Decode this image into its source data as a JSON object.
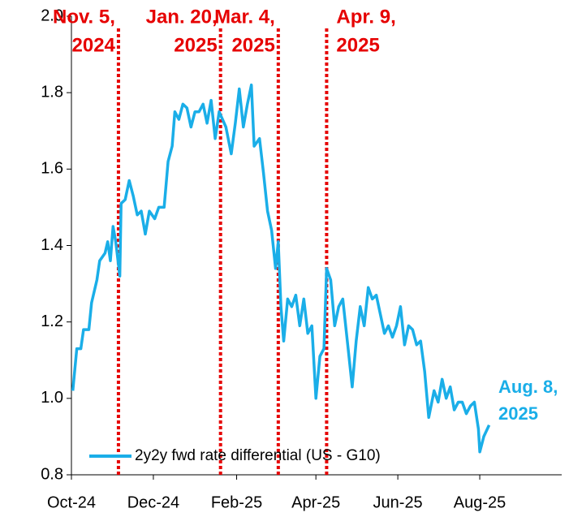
{
  "chart_data": {
    "type": "line",
    "x": [
      "2024-10-02",
      "2024-10-05",
      "2024-10-08",
      "2024-10-10",
      "2024-10-14",
      "2024-10-16",
      "2024-10-20",
      "2024-10-22",
      "2024-10-26",
      "2024-10-28",
      "2024-10-30",
      "2024-11-01",
      "2024-11-03",
      "2024-11-06",
      "2024-11-07",
      "2024-11-10",
      "2024-11-13",
      "2024-11-16",
      "2024-11-19",
      "2024-11-22",
      "2024-11-25",
      "2024-11-28",
      "2024-12-02",
      "2024-12-05",
      "2024-12-09",
      "2024-12-12",
      "2024-12-15",
      "2024-12-17",
      "2024-12-20",
      "2024-12-23",
      "2024-12-26",
      "2024-12-29",
      "2025-01-01",
      "2025-01-04",
      "2025-01-07",
      "2025-01-10",
      "2025-01-13",
      "2025-01-16",
      "2025-01-19",
      "2025-01-24",
      "2025-01-28",
      "2025-01-31",
      "2025-02-03",
      "2025-02-06",
      "2025-02-09",
      "2025-02-12",
      "2025-02-14",
      "2025-02-18",
      "2025-02-21",
      "2025-02-24",
      "2025-02-27",
      "2025-03-02",
      "2025-03-04",
      "2025-03-06",
      "2025-03-08",
      "2025-03-11",
      "2025-03-14",
      "2025-03-17",
      "2025-03-20",
      "2025-03-23",
      "2025-03-26",
      "2025-03-29",
      "2025-04-01",
      "2025-04-04",
      "2025-04-07",
      "2025-04-09",
      "2025-04-12",
      "2025-04-15",
      "2025-04-18",
      "2025-04-21",
      "2025-04-25",
      "2025-04-28",
      "2025-05-01",
      "2025-05-04",
      "2025-05-07",
      "2025-05-10",
      "2025-05-13",
      "2025-05-16",
      "2025-05-19",
      "2025-05-22",
      "2025-05-25",
      "2025-05-28",
      "2025-05-31",
      "2025-06-03",
      "2025-06-06",
      "2025-06-09",
      "2025-06-12",
      "2025-06-15",
      "2025-06-18",
      "2025-06-21",
      "2025-06-24",
      "2025-06-28",
      "2025-07-01",
      "2025-07-04",
      "2025-07-07",
      "2025-07-10",
      "2025-07-13",
      "2025-07-16",
      "2025-07-19",
      "2025-07-22",
      "2025-07-25",
      "2025-07-28",
      "2025-07-31",
      "2025-08-01",
      "2025-08-04",
      "2025-08-08"
    ],
    "series": [
      {
        "name": "2y2y fwd rate differential (US - G10)",
        "color": "#1aaee8",
        "values": [
          1.02,
          1.13,
          1.13,
          1.18,
          1.18,
          1.25,
          1.31,
          1.36,
          1.38,
          1.41,
          1.36,
          1.45,
          1.41,
          1.32,
          1.51,
          1.52,
          1.57,
          1.53,
          1.48,
          1.49,
          1.43,
          1.49,
          1.47,
          1.5,
          1.5,
          1.62,
          1.66,
          1.75,
          1.73,
          1.77,
          1.76,
          1.71,
          1.75,
          1.75,
          1.77,
          1.72,
          1.78,
          1.68,
          1.75,
          1.71,
          1.64,
          1.72,
          1.81,
          1.71,
          1.77,
          1.82,
          1.66,
          1.68,
          1.59,
          1.49,
          1.44,
          1.34,
          1.41,
          1.24,
          1.15,
          1.26,
          1.24,
          1.27,
          1.19,
          1.26,
          1.17,
          1.19,
          1.0,
          1.11,
          1.13,
          1.34,
          1.31,
          1.19,
          1.24,
          1.26,
          1.13,
          1.03,
          1.15,
          1.24,
          1.19,
          1.29,
          1.26,
          1.27,
          1.22,
          1.17,
          1.19,
          1.16,
          1.19,
          1.24,
          1.14,
          1.19,
          1.18,
          1.14,
          1.15,
          1.07,
          0.95,
          1.02,
          0.99,
          1.05,
          1.0,
          1.03,
          0.97,
          0.99,
          0.99,
          0.96,
          0.98,
          0.99,
          0.92,
          0.86,
          0.9,
          0.93
        ]
      }
    ],
    "xlim": [
      "2024-10-01",
      "2025-10-01"
    ],
    "xticks": [
      {
        "value": "2024-10-01",
        "label": "Oct-24"
      },
      {
        "value": "2024-12-01",
        "label": "Dec-24"
      },
      {
        "value": "2025-02-01",
        "label": "Feb-25"
      },
      {
        "value": "2025-04-01",
        "label": "Apr-25"
      },
      {
        "value": "2025-06-01",
        "label": "Jun-25"
      },
      {
        "value": "2025-08-01",
        "label": "Aug-25"
      }
    ],
    "ylim": [
      0.8,
      2.0
    ],
    "yticks": [
      0.8,
      {
        "value": 1.0,
        "label": "1.0"
      },
      1.2,
      1.4,
      1.6,
      1.8,
      {
        "value": 2.0,
        "label": "2.0"
      }
    ],
    "events": [
      {
        "date": "2024-11-05",
        "lines": [
          "Nov. 5,",
          "2024"
        ]
      },
      {
        "date": "2025-01-20",
        "lines": [
          "Jan. 20,",
          "2025"
        ]
      },
      {
        "date": "2025-03-04",
        "lines": [
          "Mar. 4,",
          "2025"
        ]
      },
      {
        "date": "2025-04-09",
        "lines": [
          "Apr. 9,",
          "2025"
        ]
      }
    ],
    "event_color": "#e60000",
    "end_label": [
      "Aug. 8,",
      "2025"
    ],
    "legend": "bottom-left",
    "grid": false
  }
}
